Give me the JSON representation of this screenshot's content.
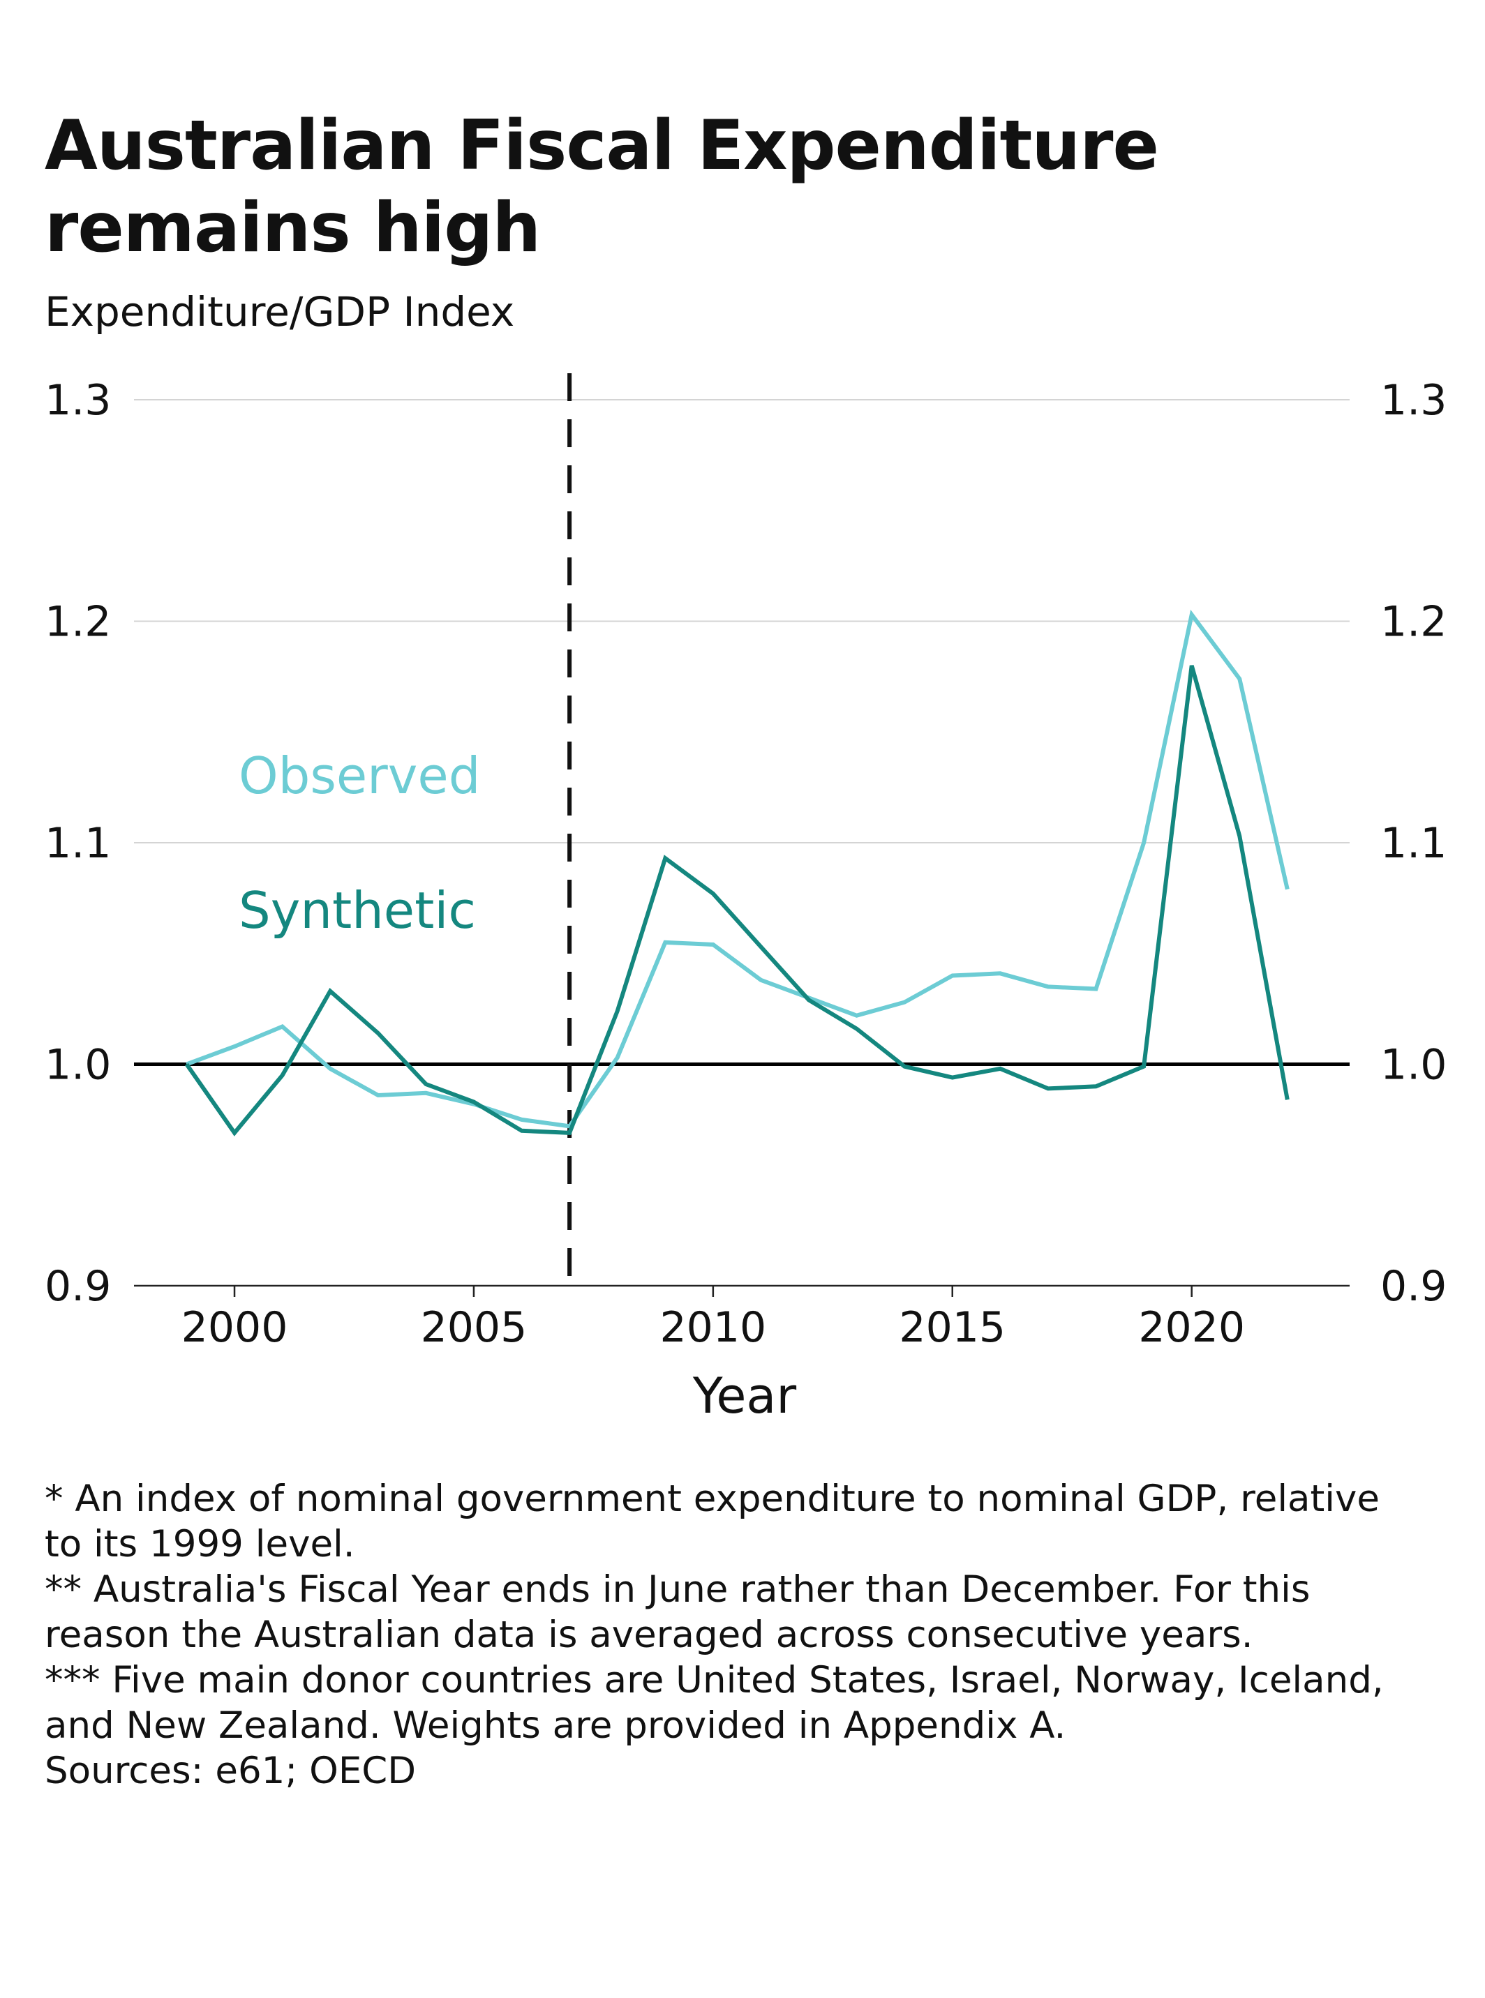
{
  "title_line1": "Australian Fiscal Expenditure",
  "title_line2": "remains high",
  "subtitle": "Expenditure/GDP Index",
  "chart_data": {
    "type": "line",
    "xlabel": "Year",
    "ylabel": "",
    "xlim": [
      1997.9,
      2023.3
    ],
    "ylim": [
      0.9,
      1.3
    ],
    "x_ticks": [
      2000,
      2005,
      2010,
      2015,
      2020
    ],
    "y_ticks": [
      0.9,
      1.0,
      1.1,
      1.2,
      1.3
    ],
    "y_tick_labels": [
      "0.9",
      "1.0",
      "1.1",
      "1.2",
      "1.3"
    ],
    "reference_line_y": 1.0,
    "vertical_marker_x": 2007,
    "grid": "horizontal",
    "x": [
      1999,
      2000,
      2001,
      2002,
      2003,
      2004,
      2005,
      2006,
      2007,
      2008,
      2009,
      2010,
      2011,
      2012,
      2013,
      2014,
      2015,
      2016,
      2017,
      2018,
      2019,
      2020,
      2021,
      2022
    ],
    "series": [
      {
        "name": "Observed",
        "color": "#6cccd4",
        "values": [
          1.0,
          1.008,
          1.017,
          0.998,
          0.986,
          0.987,
          0.982,
          0.975,
          0.972,
          1.003,
          1.055,
          1.054,
          1.038,
          1.03,
          1.022,
          1.028,
          1.04,
          1.041,
          1.035,
          1.034,
          1.1,
          1.203,
          1.174,
          1.079
        ]
      },
      {
        "name": "Synthetic",
        "color": "#14877f",
        "values": [
          1.0,
          0.969,
          0.995,
          1.033,
          1.014,
          0.991,
          0.983,
          0.97,
          0.969,
          1.024,
          1.093,
          1.077,
          1.053,
          1.029,
          1.016,
          0.999,
          0.994,
          0.998,
          0.989,
          0.99,
          0.999,
          1.18,
          1.103,
          0.984
        ]
      }
    ]
  },
  "notes": [
    "* An index of nominal government expenditure to nominal GDP, relative to its 1999 level.",
    "** Australia's Fiscal Year ends in June rather than December. For this reason the Australian data is averaged across consecutive years.",
    "*** Five main donor countries are United States, Israel, Norway, Iceland, and New Zealand. Weights are provided in Appendix A.",
    "Sources: e61; OECD"
  ]
}
